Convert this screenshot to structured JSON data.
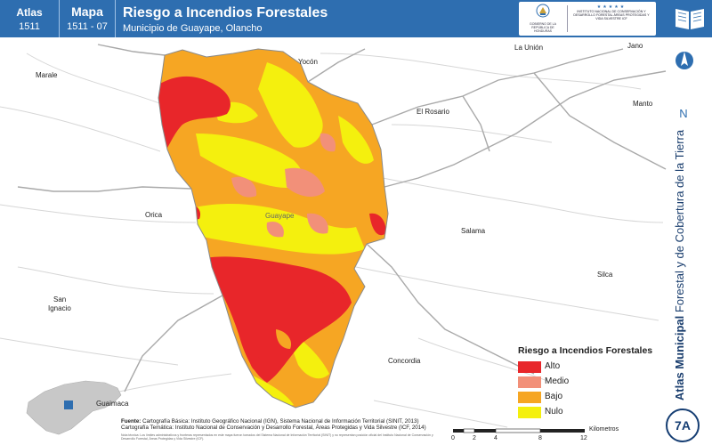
{
  "header": {
    "atlas_label": "Atlas",
    "atlas_number": "1511",
    "mapa_label": "Mapa",
    "mapa_number": "1511 - 07",
    "title": "Riesgo a Incendios Forestales",
    "subtitle": "Municipio de Guayape, Olancho",
    "logo_left_text": "GOBIERNO DE LA REPÚBLICA DE HONDURAS",
    "logo_right_text": "INSTITUTO NACIONAL DE CONSERVACIÓN Y DESARROLLO FORESTAL ÁREAS PROTEGIDAS Y VIDA SILVESTRE ICF",
    "book_icon": "open-book-icon"
  },
  "sidebar": {
    "north_label": "N",
    "vertical_title_bold": "Atlas Municipal",
    "vertical_title_rest": " Forestal y de Cobertura de la Tierra",
    "badge": "7A"
  },
  "places": {
    "yocon": "Yocón",
    "la_union": "La Unión",
    "jano": "Jano",
    "marale": "Marale",
    "el_rosario": "El Rosario",
    "manto": "Manto",
    "orica": "Orica",
    "guayape": "Guayape",
    "salama": "Salama",
    "silca": "Silca",
    "san_ignacio_1": "San",
    "san_ignacio_2": "Ignacio",
    "concordia": "Concordia",
    "guaimaca": "Guaimaca"
  },
  "legend": {
    "title": "Riesgo a Incendios Forestales",
    "items": [
      {
        "label": "Alto",
        "color": "#e8262a"
      },
      {
        "label": "Medio",
        "color": "#f29079"
      },
      {
        "label": "Bajo",
        "color": "#f6a623"
      },
      {
        "label": "Nulo",
        "color": "#f4f00e"
      }
    ]
  },
  "sources": {
    "label": "Fuente:",
    "line1": "Cartografía Básica: Instituto Geográfico Nacional (IGN), Sistema Nacional de Información Territorial (SINIT, 2013)",
    "line2": "Cartografía Temática: Instituto Nacional de Conservación y Desarrollo Forestal, Áreas Protegidas y Vida Silvestre (ICF, 2014)",
    "note": "Nota técnica: Los límites administrativos y fronteras representados en este mapa fueron tomados del Sistema Nacional de Información Territorial (SINIT) y no representan posición oficial del Instituto Nacional de Conservación y Desarrollo Forestal, Áreas Protegidas y Vida Silvestre (ICF)."
  },
  "scale": {
    "ticks": [
      "0",
      "2",
      "4",
      "8",
      "12"
    ],
    "unit": "Kilometros"
  },
  "colors": {
    "header_blue": "#2e6eb0",
    "alto": "#e8262a",
    "medio": "#f29079",
    "bajo": "#f6a623",
    "nulo": "#f4f00e"
  }
}
